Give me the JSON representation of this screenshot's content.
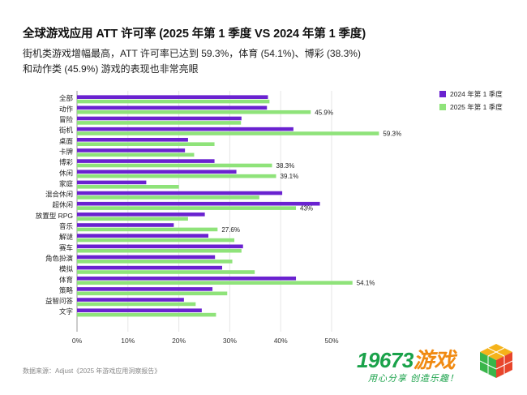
{
  "header": {
    "title": "全球游戏应用 ATT 许可率 (2025 年第 1 季度 VS 2024 年第 1 季度)",
    "subtitle": "街机类游戏增幅最高，ATT 许可率已达到 59.3%，体育 (54.1%)、博彩 (38.3%) 和动作类 (45.9%) 游戏的表现也非常亮眼"
  },
  "footer": {
    "source": "数据来源：Adjust《2025 年游戏应用洞察报告》",
    "logo_number": "19673",
    "logo_cn": "游戏",
    "logo_slogan": "用心分享  创造乐趣！"
  },
  "colors": {
    "series_2024": "#6a22d0",
    "series_2025": "#8fe37a"
  },
  "chart_data": {
    "type": "bar",
    "orientation": "horizontal",
    "categories": [
      "全部",
      "动作",
      "冒险",
      "街机",
      "桌面",
      "卡牌",
      "博彩",
      "休闲",
      "家庭",
      "混合休闲",
      "超休闲",
      "放置型 RPG",
      "音乐",
      "解谜",
      "赛车",
      "角色扮演",
      "模拟",
      "体育",
      "策略",
      "益智问答",
      "文字"
    ],
    "series": [
      {
        "name": "2024 年第 1 季度",
        "values": [
          37.5,
          37.3,
          32.3,
          42.5,
          21.8,
          21.2,
          27.0,
          31.3,
          13.6,
          40.3,
          47.7,
          25.1,
          19.0,
          25.8,
          32.6,
          27.1,
          28.5,
          43.0,
          26.6,
          21.0,
          24.5
        ]
      },
      {
        "name": "2025 年第 1 季度",
        "values": [
          37.8,
          45.9,
          32.2,
          59.3,
          27.0,
          23.0,
          38.3,
          39.1,
          20.0,
          35.8,
          43.0,
          21.8,
          27.6,
          30.9,
          32.3,
          30.5,
          34.9,
          54.1,
          29.5,
          23.3,
          27.3
        ]
      }
    ],
    "data_labels": [
      {
        "category": "动作",
        "series": "2025 年第 1 季度",
        "text": "45.9%"
      },
      {
        "category": "街机",
        "series": "2025 年第 1 季度",
        "text": "59.3%"
      },
      {
        "category": "博彩",
        "series": "2025 年第 1 季度",
        "text": "38.3%"
      },
      {
        "category": "休闲",
        "series": "2025 年第 1 季度",
        "text": "39.1%"
      },
      {
        "category": "超休闲",
        "series": "2025 年第 1 季度",
        "text": "43%"
      },
      {
        "category": "音乐",
        "series": "2025 年第 1 季度",
        "text": "27.6%"
      },
      {
        "category": "体育",
        "series": "2025 年第 1 季度",
        "text": "54.1%"
      }
    ],
    "x_ticks": [
      "0%",
      "10%",
      "20%",
      "30%",
      "40%",
      "50%"
    ],
    "xlim": [
      0,
      60
    ],
    "grid": true,
    "legend_position": "top-right"
  }
}
